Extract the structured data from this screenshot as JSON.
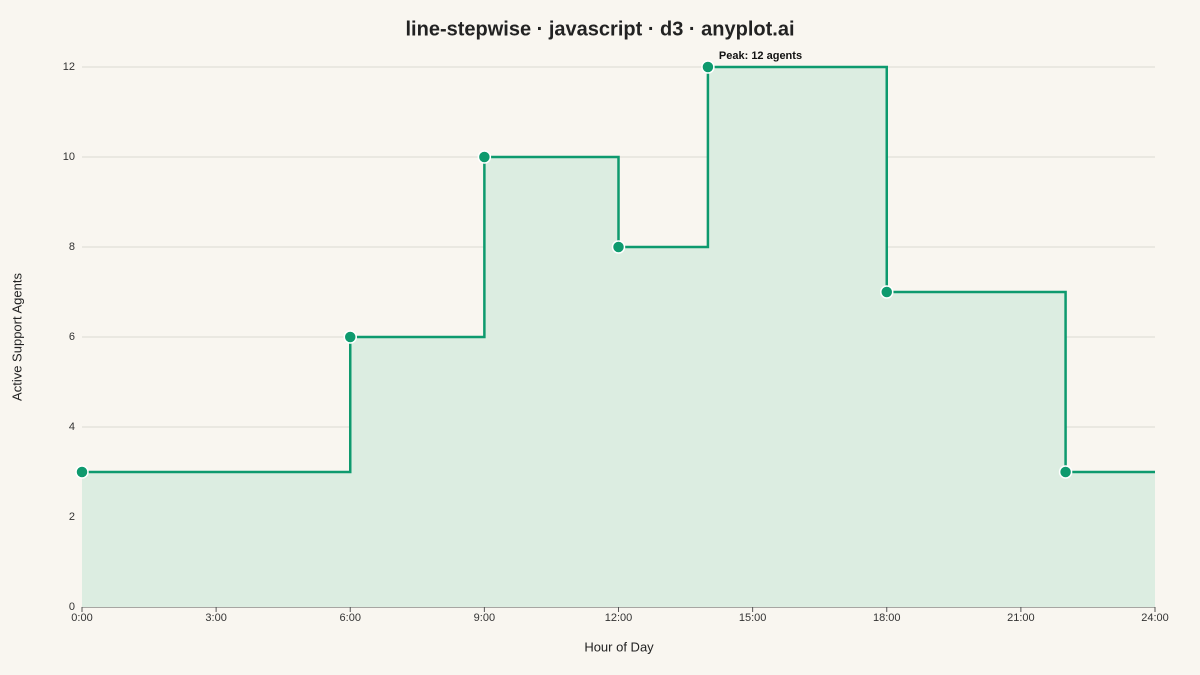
{
  "chart_data": {
    "type": "line-step",
    "title": "line-stepwise · javascript · d3 · anyplot.ai",
    "x_label": "Hour of Day",
    "y_label": "Active Support Agents",
    "x": [
      0,
      6,
      9,
      12,
      14,
      18,
      22
    ],
    "series": [
      {
        "name": "Active Support Agents",
        "color": "#0e9a6e",
        "fill": "#dcede1",
        "values": [
          3,
          6,
          10,
          8,
          12,
          7,
          3
        ]
      }
    ],
    "annotation": "Peak: 12 agents",
    "xlim": [
      0,
      24
    ],
    "xticks": [
      {
        "value": 0,
        "label": "0:00"
      },
      {
        "value": 3,
        "label": "3:00"
      },
      {
        "value": 6,
        "label": "6:00"
      },
      {
        "value": 9,
        "label": "9:00"
      },
      {
        "value": 12,
        "label": "12:00"
      },
      {
        "value": 15,
        "label": "15:00"
      },
      {
        "value": 18,
        "label": "18:00"
      },
      {
        "value": 21,
        "label": "21:00"
      },
      {
        "value": 24,
        "label": "24:00"
      }
    ],
    "ylim": [
      0,
      12
    ],
    "yticks": [
      0,
      2,
      4,
      6,
      8,
      10,
      12
    ],
    "grid": true
  }
}
